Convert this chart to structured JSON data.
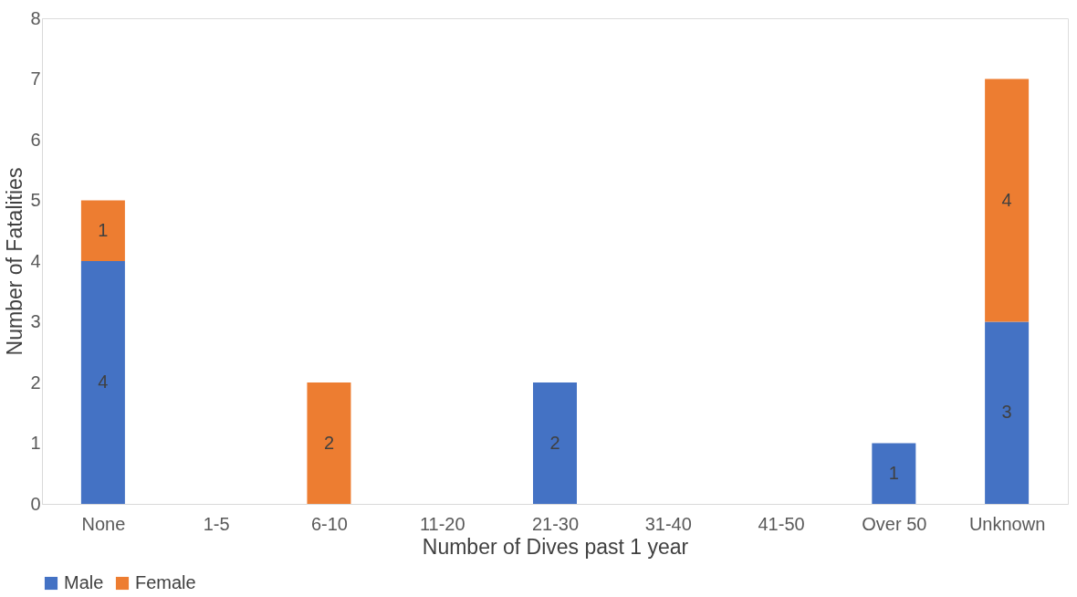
{
  "chart_data": {
    "type": "bar",
    "stacked": true,
    "xlabel": "Number of Dives past 1 year",
    "ylabel": "Number of Fatalities",
    "categories": [
      "None",
      "1-5",
      "6-10",
      "11-20",
      "21-30",
      "31-40",
      "41-50",
      "Over 50",
      "Unknown"
    ],
    "series": [
      {
        "name": "Male",
        "color": "#4472c4",
        "values": [
          4,
          0,
          0,
          0,
          2,
          0,
          0,
          1,
          3
        ],
        "value_labels": [
          "4",
          null,
          null,
          null,
          "2",
          null,
          null,
          "1",
          "3"
        ]
      },
      {
        "name": "Female",
        "color": "#ed7d31",
        "values": [
          1,
          0,
          2,
          0,
          0,
          0,
          0,
          0,
          4
        ],
        "value_labels": [
          "1",
          null,
          "2",
          null,
          null,
          null,
          null,
          null,
          "4"
        ]
      }
    ],
    "ylim": [
      0,
      8
    ],
    "yticks": [
      0,
      1,
      2,
      3,
      4,
      5,
      6,
      7,
      8
    ],
    "grid": false,
    "legend": "bottom"
  }
}
